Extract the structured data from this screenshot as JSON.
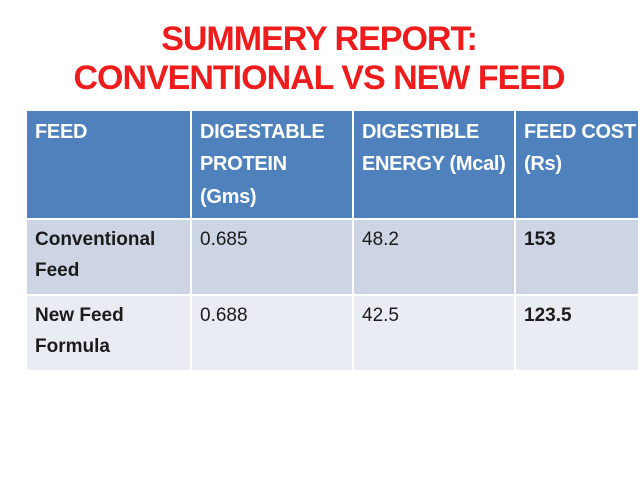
{
  "slide_title": {
    "line1": "SUMMERY REPORT:",
    "line2": "CONVENTIONAL VS NEW FEED"
  },
  "colors": {
    "title_red": "#ee1c1c",
    "header_bg_blue": "#4f81bd",
    "header_text": "#ffffff",
    "row_odd_bg": "#cdd4e3",
    "row_even_bg": "#e9ecf3",
    "cost_value_red": "#d42626",
    "body_text": "#1b1b1b",
    "slide_bg": "#ffffff"
  },
  "table": {
    "columns": [
      "FEED",
      "DIGESTABLE PROTEIN (Gms)",
      "DIGESTIBLE ENERGY (Mcal)",
      "FEED COST (Rs)"
    ],
    "rows": [
      {
        "feed": "Conventional Feed",
        "digestable_protein_gms": "0.685",
        "digestible_energy_mcal": "48.2",
        "feed_cost_rs": "153"
      },
      {
        "feed": "New Feed Formula",
        "digestable_protein_gms": "0.688",
        "digestible_energy_mcal": "42.5",
        "feed_cost_rs": "123.5"
      }
    ]
  }
}
